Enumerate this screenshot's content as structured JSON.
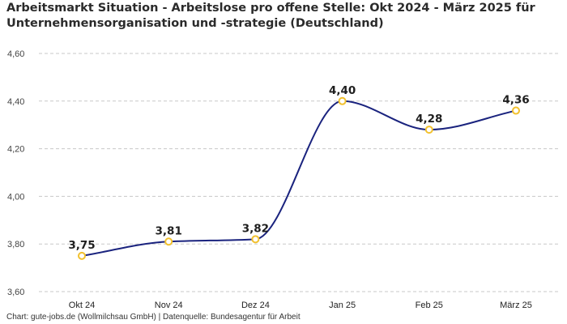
{
  "colors": {
    "line": "#1a237e",
    "marker_stroke": "#f2c12e",
    "marker_fill": "#ffffff",
    "grid": "#c8c8c8"
  },
  "chart_data": {
    "type": "line",
    "title": "Arbeitsmarkt Situation - Arbeitslose pro offene Stelle: Okt 2024 - März 2025 für Unternehmensorganisation und -strategie (Deutschland)",
    "xlabel": "",
    "ylabel": "",
    "categories": [
      "Okt 24",
      "Nov 24",
      "Dez 24",
      "Jan 25",
      "Feb 25",
      "März 25"
    ],
    "series": [
      {
        "name": "Arbeitslose pro offene Stelle",
        "values": [
          3.75,
          3.81,
          3.82,
          4.4,
          4.28,
          4.36
        ],
        "labels": [
          "3,75",
          "3,81",
          "3,82",
          "4,40",
          "4,28",
          "4,36"
        ]
      }
    ],
    "ylim": [
      3.6,
      4.6
    ],
    "yticks": [
      3.6,
      3.8,
      4.0,
      4.2,
      4.4,
      4.6
    ],
    "ytick_labels": [
      "3,60",
      "3,80",
      "4,00",
      "4,20",
      "4,40",
      "4,60"
    ],
    "grid": true,
    "legend": "none"
  },
  "footer": "Chart: gute-jobs.de (Wollmilchsau GmbH) | Datenquelle: Bundesagentur für Arbeit"
}
